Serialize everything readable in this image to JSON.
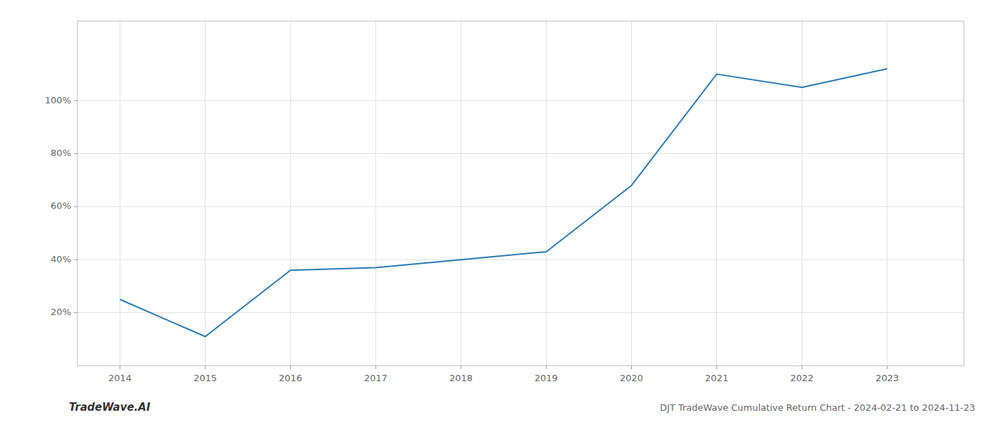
{
  "chart_data": {
    "type": "line",
    "title": "DJT TradeWave Cumulative Return Chart - 2024-02-21 to 2024-11-23",
    "annotations": [
      "TradeWave.AI"
    ],
    "x": [
      2014,
      2015,
      2016,
      2017,
      2018,
      2019,
      2020,
      2021,
      2022,
      2023
    ],
    "values": [
      25,
      11,
      36,
      37,
      40,
      43,
      68,
      110,
      105,
      112
    ],
    "color": "#2a7ab5",
    "xlim": [
      2013.5,
      2023.9
    ],
    "xticks": [
      2014,
      2015,
      2016,
      2017,
      2018,
      2019,
      2020,
      2021,
      2022,
      2023
    ],
    "ylim": [
      0,
      130
    ],
    "yticks": [
      {
        "value": 20,
        "label": "20%"
      },
      {
        "value": 40,
        "label": "40%"
      },
      {
        "value": 60,
        "label": "60%"
      },
      {
        "value": 80,
        "label": "80%"
      },
      {
        "value": 100,
        "label": "100%"
      }
    ],
    "grid": true
  }
}
